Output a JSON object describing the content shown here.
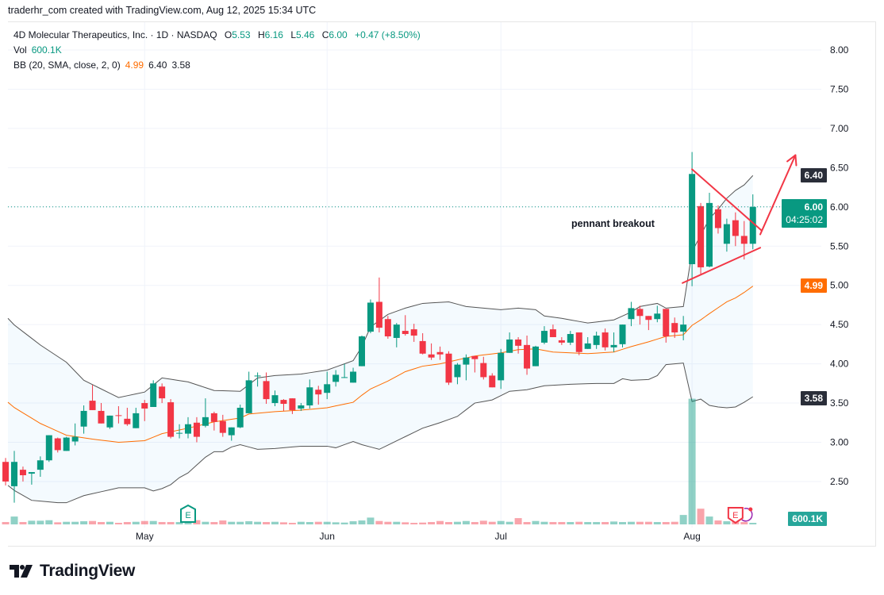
{
  "header": {
    "credit": "traderhr_com created with TradingView.com, Aug 12, 2025 15:34 UTC"
  },
  "legend": {
    "symbol": "4D Molecular Therapeutics, Inc. · 1D · NASDAQ",
    "o_label": "O",
    "o": "5.53",
    "h_label": "H",
    "h": "6.16",
    "l_label": "L",
    "l": "5.46",
    "c_label": "C",
    "c": "6.00",
    "change": "+0.47 (+8.50%)",
    "vol_label": "Vol",
    "vol": "600.1K",
    "bb_label": "BB (20, SMA, close, 2, 0)",
    "bb_basis": "4.99",
    "bb_upper": "6.40",
    "bb_lower": "3.58"
  },
  "badges": {
    "upper": "6.40",
    "price": "6.00",
    "countdown": "04:25:02",
    "basis": "4.99",
    "lower": "3.58",
    "volume": "600.1K"
  },
  "annotation_text": "pennant breakout",
  "logo": {
    "text": "TradingView"
  },
  "colors": {
    "up": "#089981",
    "down": "#f23645",
    "basis": "#ff6d00",
    "band": "#555555",
    "annotation": "#f23645"
  },
  "chart_data": {
    "type": "candlestick",
    "title": "4D Molecular Therapeutics, Inc. · 1D · NASDAQ",
    "ylim": [
      2.2,
      8.2
    ],
    "yticks": [
      "2.50",
      "3.00",
      "3.50",
      "4.00",
      "4.50",
      "5.00",
      "5.50",
      "6.00",
      "6.50",
      "7.00",
      "7.50",
      "8.00"
    ],
    "months": [
      {
        "label": "May",
        "index": 16
      },
      {
        "label": "Jun",
        "index": 37
      },
      {
        "label": "Jul",
        "index": 57
      },
      {
        "label": "Aug",
        "index": 79
      }
    ],
    "ohlc": [
      [
        2.75,
        2.8,
        2.45,
        2.5
      ],
      [
        2.44,
        2.89,
        2.23,
        2.75
      ],
      [
        2.65,
        2.69,
        2.5,
        2.58
      ],
      [
        2.6,
        2.62,
        2.46,
        2.62
      ],
      [
        2.65,
        2.82,
        2.56,
        2.77
      ],
      [
        2.77,
        3.09,
        2.75,
        3.09
      ],
      [
        3.05,
        3.06,
        2.87,
        2.9
      ],
      [
        2.89,
        3.07,
        2.89,
        3.06
      ],
      [
        3.01,
        3.24,
        2.96,
        3.07
      ],
      [
        3.2,
        3.47,
        3.11,
        3.4
      ],
      [
        3.53,
        3.73,
        3.41,
        3.41
      ],
      [
        3.4,
        3.5,
        3.24,
        3.24
      ],
      [
        3.19,
        3.34,
        3.17,
        3.34
      ],
      [
        3.345,
        3.46,
        3.24,
        3.34
      ],
      [
        3.3,
        3.44,
        3.21,
        3.23
      ],
      [
        3.18,
        3.44,
        3.18,
        3.37
      ],
      [
        3.5,
        3.54,
        3.27,
        3.43
      ],
      [
        3.45,
        3.79,
        3.45,
        3.75
      ],
      [
        3.71,
        3.75,
        3.5,
        3.56
      ],
      [
        3.51,
        3.55,
        3.05,
        3.07
      ],
      [
        3.11,
        3.23,
        3.05,
        3.12
      ],
      [
        3.11,
        3.32,
        3.05,
        3.23
      ],
      [
        3.25,
        3.32,
        3.0,
        3.07
      ],
      [
        3.21,
        3.56,
        3.19,
        3.32
      ],
      [
        3.37,
        3.39,
        3.15,
        3.26
      ],
      [
        3.27,
        3.35,
        3.07,
        3.12
      ],
      [
        3.09,
        3.19,
        3.02,
        3.19
      ],
      [
        3.19,
        3.48,
        3.18,
        3.44
      ],
      [
        3.37,
        3.9,
        3.37,
        3.79
      ],
      [
        3.84,
        3.89,
        3.71,
        3.85
      ],
      [
        3.78,
        3.89,
        3.49,
        3.55
      ],
      [
        3.5,
        3.66,
        3.46,
        3.6
      ],
      [
        3.54,
        3.55,
        3.4,
        3.49
      ],
      [
        3.56,
        3.56,
        3.36,
        3.41
      ],
      [
        3.43,
        3.5,
        3.4,
        3.47
      ],
      [
        3.47,
        3.8,
        3.43,
        3.7
      ],
      [
        3.67,
        3.72,
        3.48,
        3.61
      ],
      [
        3.63,
        3.9,
        3.55,
        3.74
      ],
      [
        3.77,
        3.92,
        3.71,
        3.86
      ],
      [
        3.82,
        4.0,
        3.82,
        3.83
      ],
      [
        3.76,
        3.95,
        3.76,
        3.9
      ],
      [
        3.97,
        4.36,
        3.97,
        4.35
      ],
      [
        4.41,
        4.82,
        4.39,
        4.78
      ],
      [
        4.79,
        5.1,
        4.4,
        4.46
      ],
      [
        4.57,
        4.61,
        4.32,
        4.35
      ],
      [
        4.33,
        4.52,
        4.21,
        4.5
      ],
      [
        4.42,
        4.62,
        4.36,
        4.38
      ],
      [
        4.44,
        4.51,
        4.28,
        4.36
      ],
      [
        4.29,
        4.39,
        4.12,
        4.13
      ],
      [
        4.12,
        4.26,
        4.05,
        4.08
      ],
      [
        4.15,
        4.22,
        4.05,
        4.12
      ],
      [
        4.13,
        4.16,
        3.73,
        3.76
      ],
      [
        3.83,
        4.01,
        3.74,
        3.99
      ],
      [
        3.99,
        4.12,
        3.79,
        4.08
      ],
      [
        4.1,
        4.1,
        3.89,
        4.06
      ],
      [
        4.01,
        4.09,
        3.8,
        3.83
      ],
      [
        3.85,
        3.88,
        3.7,
        3.7
      ],
      [
        3.79,
        4.19,
        3.68,
        4.14
      ],
      [
        4.14,
        4.4,
        4.14,
        4.31
      ],
      [
        4.31,
        4.34,
        4.13,
        4.23
      ],
      [
        4.24,
        4.36,
        3.86,
        3.94
      ],
      [
        3.97,
        4.23,
        3.97,
        4.22
      ],
      [
        4.27,
        4.48,
        4.25,
        4.42
      ],
      [
        4.44,
        4.5,
        4.34,
        4.34
      ],
      [
        4.3,
        4.34,
        4.24,
        4.27
      ],
      [
        4.27,
        4.42,
        4.24,
        4.38
      ],
      [
        4.4,
        4.4,
        4.11,
        4.15
      ],
      [
        4.19,
        4.34,
        4.19,
        4.26
      ],
      [
        4.24,
        4.41,
        4.19,
        4.36
      ],
      [
        4.4,
        4.45,
        4.17,
        4.21
      ],
      [
        4.21,
        4.4,
        4.15,
        4.24
      ],
      [
        4.25,
        4.5,
        4.21,
        4.5
      ],
      [
        4.57,
        4.79,
        4.48,
        4.71
      ],
      [
        4.7,
        4.74,
        4.5,
        4.61
      ],
      [
        4.61,
        4.61,
        4.43,
        4.56
      ],
      [
        4.57,
        4.74,
        4.53,
        4.64
      ],
      [
        4.7,
        4.7,
        4.27,
        4.35
      ],
      [
        4.52,
        4.59,
        4.33,
        4.4
      ],
      [
        4.41,
        4.61,
        4.3,
        4.5
      ],
      [
        5.27,
        6.7,
        4.99,
        6.42
      ],
      [
        6.01,
        6.05,
        5.13,
        5.23
      ],
      [
        5.24,
        6.18,
        5.23,
        6.05
      ],
      [
        5.97,
        6.02,
        5.66,
        5.73
      ],
      [
        5.53,
        5.85,
        5.43,
        5.78
      ],
      [
        5.83,
        5.93,
        5.5,
        5.63
      ],
      [
        5.63,
        5.82,
        5.33,
        5.53
      ],
      [
        5.53,
        6.16,
        5.46,
        6.0
      ]
    ],
    "volume_millions": [
      0.9,
      3.0,
      0.9,
      1.4,
      1.4,
      1.6,
      0.8,
      1.0,
      1.0,
      1.2,
      1.3,
      0.9,
      1.0,
      0.6,
      0.9,
      1.0,
      1.3,
      1.3,
      0.9,
      0.9,
      0.9,
      1.0,
      1.6,
      1.0,
      0.9,
      1.5,
      1.0,
      1.0,
      1.2,
      1.0,
      0.9,
      1.0,
      0.8,
      0.6,
      1.0,
      0.9,
      1.0,
      1.0,
      0.8,
      0.7,
      1.2,
      1.5,
      2.6,
      1.3,
      1.0,
      1.0,
      0.8,
      0.6,
      0.7,
      0.9,
      1.3,
      0.9,
      1.0,
      1.3,
      0.9,
      1.4,
      1.0,
      1.3,
      1.0,
      2.4,
      0.9,
      1.3,
      1.0,
      0.9,
      0.9,
      0.9,
      1.0,
      0.9,
      0.9,
      0.9,
      1.1,
      0.9,
      1.0,
      1.0,
      1.0,
      0.9,
      0.9,
      1.0,
      3.6,
      48.0,
      6.0,
      3.0,
      1.5,
      1.2,
      1.2,
      0.9,
      0.6
    ],
    "bollinger": {
      "upper": [
        [
          0,
          4.58
        ],
        [
          4,
          4.24
        ],
        [
          7,
          4.02
        ],
        [
          9,
          3.79
        ],
        [
          13,
          3.57
        ],
        [
          16,
          3.64
        ],
        [
          18,
          3.82
        ],
        [
          21,
          3.77
        ],
        [
          24,
          3.66
        ],
        [
          27,
          3.65
        ],
        [
          29,
          3.82
        ],
        [
          31,
          3.85
        ],
        [
          34,
          3.87
        ],
        [
          37,
          3.92
        ],
        [
          40,
          4.04
        ],
        [
          41,
          4.22
        ],
        [
          42,
          4.47
        ],
        [
          44,
          4.63
        ],
        [
          46,
          4.71
        ],
        [
          48,
          4.77
        ],
        [
          51,
          4.79
        ],
        [
          53,
          4.73
        ],
        [
          57,
          4.69
        ],
        [
          59,
          4.71
        ],
        [
          61,
          4.69
        ],
        [
          62,
          4.61
        ],
        [
          64,
          4.58
        ],
        [
          67,
          4.52
        ],
        [
          70,
          4.56
        ],
        [
          72,
          4.66
        ],
        [
          73,
          4.73
        ],
        [
          75,
          4.77
        ],
        [
          76,
          4.71
        ],
        [
          78,
          4.73
        ],
        [
          79,
          5.43
        ],
        [
          80,
          5.64
        ],
        [
          81,
          5.85
        ],
        [
          82,
          5.97
        ],
        [
          83,
          6.11
        ],
        [
          84,
          6.21
        ],
        [
          85,
          6.28
        ],
        [
          86,
          6.4
        ]
      ],
      "basis": [
        [
          0,
          3.51
        ],
        [
          4,
          3.24
        ],
        [
          7,
          3.09
        ],
        [
          10,
          3.04
        ],
        [
          13,
          3.0
        ],
        [
          16,
          3.02
        ],
        [
          18,
          3.11
        ],
        [
          21,
          3.18
        ],
        [
          24,
          3.26
        ],
        [
          27,
          3.31
        ],
        [
          28,
          3.36
        ],
        [
          31,
          3.39
        ],
        [
          34,
          3.41
        ],
        [
          37,
          3.44
        ],
        [
          40,
          3.51
        ],
        [
          41,
          3.6
        ],
        [
          42,
          3.68
        ],
        [
          44,
          3.78
        ],
        [
          46,
          3.9
        ],
        [
          48,
          3.97
        ],
        [
          50,
          4.0
        ],
        [
          52,
          4.05
        ],
        [
          54,
          4.1
        ],
        [
          57,
          4.14
        ],
        [
          59,
          4.18
        ],
        [
          61,
          4.19
        ],
        [
          63,
          4.15
        ],
        [
          67,
          4.13
        ],
        [
          70,
          4.15
        ],
        [
          72,
          4.22
        ],
        [
          74,
          4.28
        ],
        [
          76,
          4.35
        ],
        [
          78,
          4.37
        ],
        [
          79,
          4.49
        ],
        [
          80,
          4.56
        ],
        [
          81,
          4.64
        ],
        [
          83,
          4.79
        ],
        [
          84,
          4.84
        ],
        [
          85,
          4.91
        ],
        [
          86,
          4.99
        ]
      ],
      "lower": [
        [
          0,
          2.45
        ],
        [
          3,
          2.26
        ],
        [
          6,
          2.23
        ],
        [
          7,
          2.23
        ],
        [
          9,
          2.32
        ],
        [
          13,
          2.42
        ],
        [
          16,
          2.42
        ],
        [
          17,
          2.38
        ],
        [
          18,
          2.41
        ],
        [
          19,
          2.46
        ],
        [
          20,
          2.55
        ],
        [
          21,
          2.61
        ],
        [
          23,
          2.81
        ],
        [
          24,
          2.88
        ],
        [
          25,
          2.88
        ],
        [
          26,
          2.94
        ],
        [
          27,
          2.97
        ],
        [
          29,
          2.91
        ],
        [
          31,
          2.92
        ],
        [
          34,
          2.95
        ],
        [
          37,
          2.95
        ],
        [
          38,
          2.93
        ],
        [
          40,
          3.01
        ],
        [
          41,
          2.97
        ],
        [
          43,
          2.91
        ],
        [
          48,
          3.18
        ],
        [
          50,
          3.25
        ],
        [
          52,
          3.33
        ],
        [
          54,
          3.5
        ],
        [
          56,
          3.54
        ],
        [
          58,
          3.65
        ],
        [
          60,
          3.67
        ],
        [
          62,
          3.72
        ],
        [
          65,
          3.74
        ],
        [
          68,
          3.75
        ],
        [
          70,
          3.75
        ],
        [
          71,
          3.81
        ],
        [
          72,
          3.79
        ],
        [
          74,
          3.8
        ],
        [
          75,
          3.85
        ],
        [
          76,
          3.99
        ],
        [
          78,
          4.01
        ],
        [
          79,
          3.52
        ],
        [
          80,
          3.55
        ],
        [
          81,
          3.47
        ],
        [
          82,
          3.45
        ],
        [
          83,
          3.44
        ],
        [
          84,
          3.45
        ],
        [
          85,
          3.51
        ],
        [
          86,
          3.58
        ]
      ]
    },
    "last_price": 6.0,
    "trendlines": [
      {
        "name": "pennant-upper-line",
        "from": [
          79.0,
          6.48
        ],
        "to": [
          87.0,
          5.7
        ]
      },
      {
        "name": "pennant-lower-line",
        "from": [
          77.9,
          5.03
        ],
        "to": [
          86.85,
          5.48
        ]
      },
      {
        "name": "breakout-arrow-line",
        "from": [
          86.85,
          5.65
        ],
        "to": [
          90.9,
          6.66
        ],
        "arrow": true
      }
    ],
    "events": [
      {
        "type": "earnings",
        "index": 21,
        "color": "#089981"
      },
      {
        "type": "earnings",
        "index": 84,
        "color": "#f23645"
      }
    ]
  }
}
